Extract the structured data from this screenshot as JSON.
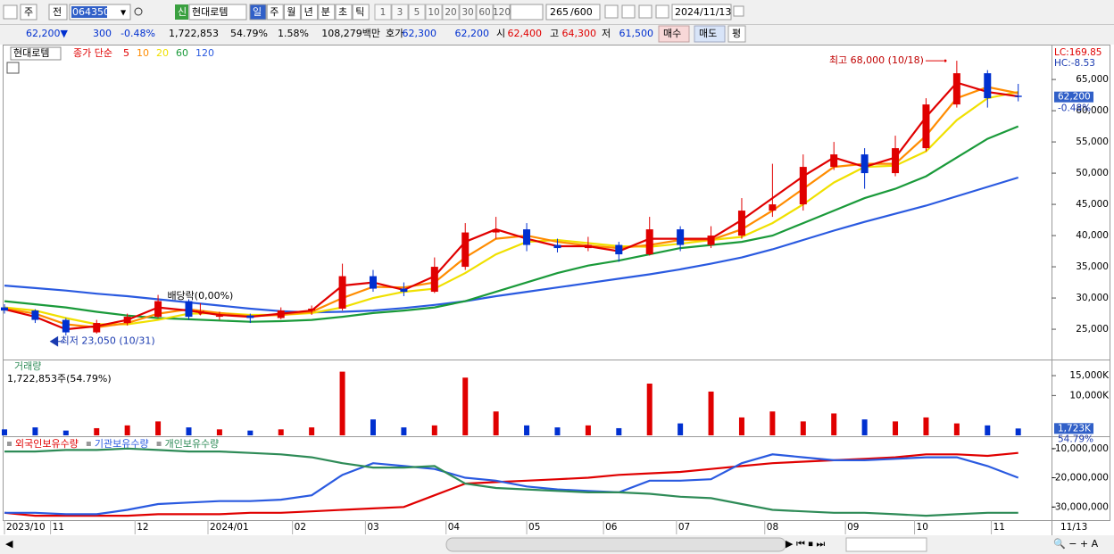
{
  "toolbar": {
    "market": "주",
    "prev": "전",
    "code": "064350",
    "name": "현대로템",
    "periods": [
      "일",
      "주",
      "월",
      "년",
      "분",
      "초",
      "틱"
    ],
    "intervals": [
      "1",
      "3",
      "5",
      "10",
      "20",
      "30",
      "60",
      "120"
    ],
    "count": "265",
    "max": "/600",
    "date": "2024/11/13"
  },
  "info": {
    "price": "62,200▼",
    "change": "300",
    "rate": "-0.48%",
    "volume": "1,722,853",
    "vol_ratio": "54.79%",
    "turnover": "1.58%",
    "amount": "108,279백만",
    "quote_label": "호가",
    "ask": "62,300",
    "bid": "62,200",
    "open_label": "시",
    "open": "62,400",
    "high_label": "고",
    "high": "64,300",
    "low_label": "저",
    "low": "61,500",
    "buy": "매수",
    "sell": "매도",
    "avg": "평"
  },
  "chart_data": [
    {
      "type": "candlestick",
      "legend_name": "현대로템",
      "legend_label": "종가 단순",
      "up_color": "#e00000",
      "down_color": "#0030d0",
      "x": [
        0,
        8,
        16,
        24,
        32,
        40,
        48,
        56,
        64,
        72,
        80,
        88,
        96,
        104,
        112,
        120,
        128,
        136,
        144,
        152,
        160,
        168,
        176,
        184,
        192,
        200,
        208,
        216,
        224,
        232,
        240,
        248,
        256,
        264
      ],
      "open": [
        28500,
        28000,
        26500,
        24500,
        26000,
        27000,
        29500,
        27000,
        27200,
        26800,
        28000,
        28300,
        33500,
        31500,
        31000,
        35000,
        40500,
        41000,
        38500,
        38000,
        38500,
        37000,
        41000,
        38500,
        40000,
        44000,
        45000,
        51000,
        53000,
        50000,
        54000,
        61000,
        66000,
        62400
      ],
      "high": [
        29000,
        28200,
        26800,
        26500,
        27500,
        30500,
        29800,
        27800,
        27500,
        28500,
        28800,
        35500,
        34500,
        32500,
        36500,
        42000,
        43000,
        42000,
        39500,
        39800,
        39000,
        43000,
        41500,
        41500,
        46000,
        51500,
        53000,
        55000,
        54000,
        56000,
        62000,
        68000,
        66500,
        64300
      ],
      "low": [
        27500,
        26000,
        24000,
        24300,
        25600,
        26800,
        26500,
        26500,
        26000,
        26600,
        27300,
        28000,
        31000,
        30300,
        30800,
        34500,
        39500,
        37500,
        37300,
        37500,
        35800,
        36800,
        37500,
        38000,
        39500,
        43000,
        44000,
        50500,
        47500,
        49500,
        53500,
        60500,
        60500,
        61500
      ],
      "close": [
        28000,
        26500,
        24500,
        26000,
        27000,
        29500,
        27000,
        27200,
        26800,
        28000,
        28300,
        33500,
        31500,
        31000,
        35000,
        40500,
        41000,
        38500,
        38000,
        38500,
        37000,
        41000,
        38500,
        40000,
        44000,
        45000,
        51000,
        53000,
        50000,
        54000,
        61000,
        66000,
        62000,
        62200
      ],
      "series": [
        {
          "name": "5",
          "color": "#e00000",
          "values": [
            28200,
            27000,
            25000,
            25500,
            26500,
            28500,
            28000,
            27300,
            27000,
            27500,
            28000,
            32000,
            32500,
            31300,
            33500,
            39000,
            41000,
            39500,
            38300,
            38300,
            37500,
            39500,
            39500,
            39500,
            42500,
            46000,
            49500,
            52500,
            51000,
            52500,
            59000,
            64500,
            63000,
            62300
          ]
        },
        {
          "name": "10",
          "color": "#ff8c00",
          "values": [
            28300,
            27500,
            25800,
            25300,
            26000,
            27500,
            28200,
            27600,
            27100,
            27300,
            27800,
            30000,
            31800,
            31700,
            32500,
            36500,
            39500,
            40000,
            39000,
            38400,
            38000,
            38500,
            39300,
            39300,
            41000,
            44000,
            47500,
            51000,
            51500,
            51500,
            56000,
            62000,
            63800,
            62800
          ]
        },
        {
          "name": "20",
          "color": "#f0e000",
          "values": [
            28500,
            28000,
            26800,
            25800,
            25800,
            26500,
            27500,
            27600,
            27300,
            27300,
            27600,
            28500,
            30000,
            31000,
            31500,
            34000,
            37000,
            39000,
            39300,
            38800,
            38300,
            38200,
            38700,
            39300,
            39800,
            42000,
            45000,
            48500,
            51000,
            51200,
            53500,
            58500,
            62000,
            63000
          ]
        },
        {
          "name": "60",
          "color": "#1a9a3a",
          "values": [
            29500,
            29000,
            28500,
            27800,
            27200,
            26800,
            26600,
            26400,
            26200,
            26300,
            26500,
            27000,
            27600,
            28000,
            28500,
            29500,
            31000,
            32500,
            34000,
            35200,
            36000,
            37000,
            38000,
            38500,
            39000,
            40000,
            42000,
            44000,
            46000,
            47500,
            49500,
            52500,
            55500,
            57500
          ]
        },
        {
          "name": "120",
          "color": "#2a5ae0",
          "values": [
            32000,
            31600,
            31200,
            30700,
            30300,
            29800,
            29300,
            28800,
            28300,
            27900,
            27700,
            27800,
            28000,
            28400,
            28900,
            29500,
            30300,
            31000,
            31700,
            32400,
            33100,
            33800,
            34600,
            35500,
            36500,
            37800,
            39300,
            40800,
            42200,
            43500,
            44800,
            46300,
            47800,
            49300
          ]
        }
      ],
      "xlim": [
        0,
        265
      ],
      "ylim": [
        20150,
        70300
      ],
      "yticks": [
        {
          "value": 25000,
          "label": "25,000"
        },
        {
          "value": 30000,
          "label": "30,000"
        },
        {
          "value": 35000,
          "label": "35,000"
        },
        {
          "value": 40000,
          "label": "40,000"
        },
        {
          "value": 45000,
          "label": "45,000"
        },
        {
          "value": 50000,
          "label": "50,000"
        },
        {
          "value": 55000,
          "label": "55,000"
        },
        {
          "value": 60000,
          "label": "60,000"
        },
        {
          "value": 65000,
          "label": "65,000"
        }
      ],
      "xticks": [
        {
          "value": 0,
          "label": "2023/10"
        },
        {
          "value": 12,
          "label": "11"
        },
        {
          "value": 34,
          "label": "12"
        },
        {
          "value": 53,
          "label": "2024/01"
        },
        {
          "value": 75,
          "label": "02"
        },
        {
          "value": 94,
          "label": "03"
        },
        {
          "value": 115,
          "label": "04"
        },
        {
          "value": 136,
          "label": "05"
        },
        {
          "value": 156,
          "label": "06"
        },
        {
          "value": 175,
          "label": "07"
        },
        {
          "value": 198,
          "label": "08"
        },
        {
          "value": 219,
          "label": "09"
        },
        {
          "value": 237,
          "label": "10"
        },
        {
          "value": 257,
          "label": "11"
        }
      ],
      "x_end_label": "11/13",
      "high_point": {
        "x": 245,
        "value": 68000,
        "label": "최고 68,000 (10/18)"
      },
      "low_point": {
        "x": 12,
        "value": 23050,
        "label": "최저 23,050 (10/31)"
      },
      "dividend": {
        "x": 51,
        "label": "배당락(0,00%)"
      },
      "lc": "LC:169.85",
      "hc": "HC:-8.53",
      "last": {
        "value": 62200,
        "label": "62,200"
      },
      "last_rate": "-0.48%"
    },
    {
      "type": "bar",
      "title": "거래량",
      "subtitle": "1,722,853주(54.79%)",
      "x": [
        0,
        8,
        16,
        24,
        32,
        40,
        48,
        56,
        64,
        72,
        80,
        88,
        96,
        104,
        112,
        120,
        128,
        136,
        144,
        152,
        160,
        168,
        176,
        184,
        192,
        200,
        208,
        216,
        224,
        232,
        240,
        248,
        256,
        264
      ],
      "values": [
        1500,
        2000,
        1200,
        1800,
        2500,
        3500,
        2000,
        1500,
        1200,
        1500,
        2000,
        16000,
        4000,
        2000,
        2500,
        14500,
        6000,
        2500,
        2000,
        2500,
        1800,
        13000,
        3000,
        11000,
        4500,
        6000,
        3500,
        5500,
        4000,
        3500,
        4500,
        3000,
        2500,
        1723
      ],
      "xlim": [
        0,
        265
      ],
      "ylim": [
        0,
        18600
      ],
      "yticks": [
        {
          "value": 10000,
          "label": "10,000K"
        },
        {
          "value": 15000,
          "label": "15,000K"
        }
      ],
      "last": {
        "value": 1723,
        "label": "1,723K"
      },
      "last_rate": "54.79%"
    },
    {
      "type": "line",
      "x": [
        0,
        8,
        16,
        24,
        32,
        40,
        48,
        56,
        64,
        72,
        80,
        88,
        96,
        104,
        112,
        120,
        128,
        136,
        144,
        152,
        160,
        168,
        176,
        184,
        192,
        200,
        208,
        216,
        224,
        232,
        240,
        248,
        256,
        264
      ],
      "series": [
        {
          "name": "외국인보유수량",
          "color": "#e00000",
          "values": [
            -32000000,
            -33000000,
            -33000000,
            -33000000,
            -33000000,
            -32500000,
            -32500000,
            -32500000,
            -32000000,
            -32000000,
            -31500000,
            -31000000,
            -30500000,
            -30000000,
            -26000000,
            -22000000,
            -21500000,
            -21000000,
            -20500000,
            -20000000,
            -19000000,
            -18500000,
            -18000000,
            -17000000,
            -16000000,
            -15000000,
            -14500000,
            -14000000,
            -13500000,
            -13000000,
            -12000000,
            -12000000,
            -12500000,
            -11500000
          ]
        },
        {
          "name": "기관보유수량",
          "color": "#2a5ae0",
          "values": [
            -32000000,
            -32000000,
            -32500000,
            -32500000,
            -31000000,
            -29000000,
            -28500000,
            -28000000,
            -28000000,
            -27500000,
            -26000000,
            -19000000,
            -15000000,
            -16000000,
            -17000000,
            -20000000,
            -21000000,
            -23000000,
            -24000000,
            -24500000,
            -25000000,
            -21000000,
            -21000000,
            -20500000,
            -15000000,
            -12000000,
            -13000000,
            -14000000,
            -14000000,
            -13500000,
            -13000000,
            -13000000,
            -16000000,
            -20000000
          ]
        },
        {
          "name": "개인보유수량",
          "color": "#2e8b57",
          "values": [
            -11000000,
            -11000000,
            -10500000,
            -10500000,
            -10000000,
            -10500000,
            -11000000,
            -11000000,
            -11500000,
            -12000000,
            -13000000,
            -15000000,
            -16500000,
            -16500000,
            -16000000,
            -22000000,
            -23500000,
            -24000000,
            -24500000,
            -25000000,
            -25000000,
            -25500000,
            -26500000,
            -27000000,
            -29000000,
            -31000000,
            -31500000,
            -32000000,
            -32000000,
            -32500000,
            -33000000,
            -32500000,
            -32000000,
            -32000000
          ]
        }
      ],
      "xlim": [
        0,
        265
      ],
      "ylim": [
        -34200000,
        -6700000
      ],
      "yticks": [
        {
          "value": -10000000,
          "label": "-10,000,000"
        },
        {
          "value": -20000000,
          "label": "-20,000,000"
        },
        {
          "value": -30000000,
          "label": "-30,000,000"
        }
      ]
    }
  ]
}
